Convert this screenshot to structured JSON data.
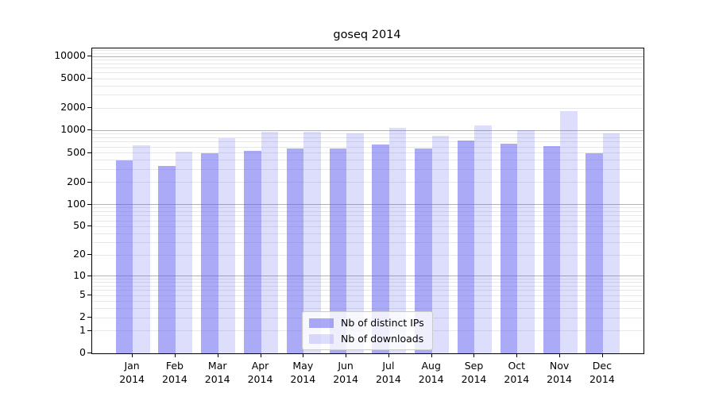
{
  "chart_data": {
    "type": "bar",
    "title": "goseq 2014",
    "xlabel": "",
    "ylabel": "",
    "year_label": "2014",
    "categories": [
      "Jan",
      "Feb",
      "Mar",
      "Apr",
      "May",
      "Jun",
      "Jul",
      "Aug",
      "Sep",
      "Oct",
      "Nov",
      "Dec"
    ],
    "series": [
      {
        "name": "Nb of distinct IPs",
        "color": "rgba(85,85,238,0.5)",
        "values": [
          400,
          330,
          495,
          535,
          570,
          570,
          645,
          570,
          735,
          660,
          615,
          490
        ]
      },
      {
        "name": "Nb of downloads",
        "color": "rgba(85,85,238,0.2)",
        "values": [
          635,
          520,
          795,
          975,
          975,
          920,
          1085,
          845,
          1170,
          1015,
          1815,
          920
        ]
      }
    ],
    "y_axis": {
      "scale": "log10(value+1)",
      "max_log_decades": 4.107,
      "tick_values": [
        0,
        1,
        2,
        5,
        10,
        20,
        50,
        100,
        200,
        500,
        1000,
        2000,
        5000,
        10000
      ],
      "tick_labels": [
        "0",
        "1",
        "2",
        "5",
        "10",
        "20",
        "50",
        "100",
        "200",
        "500",
        "1000",
        "2000",
        "5000",
        "10000"
      ]
    },
    "grid": {
      "major_values": [
        10,
        100,
        1000,
        10000
      ],
      "minor_values": [
        1,
        2,
        3,
        4,
        5,
        6,
        7,
        8,
        9,
        20,
        30,
        40,
        50,
        60,
        70,
        80,
        90,
        200,
        300,
        400,
        500,
        600,
        700,
        800,
        900,
        2000,
        3000,
        4000,
        5000,
        6000,
        7000,
        8000,
        9000,
        11000,
        12000
      ],
      "major_color": "#b2b2b2",
      "minor_color": "#e8e8e8"
    },
    "legend": {
      "position": "lower center inside plot"
    },
    "colors": {
      "spine": "#000000",
      "background": "#ffffff",
      "text": "#000000"
    }
  }
}
